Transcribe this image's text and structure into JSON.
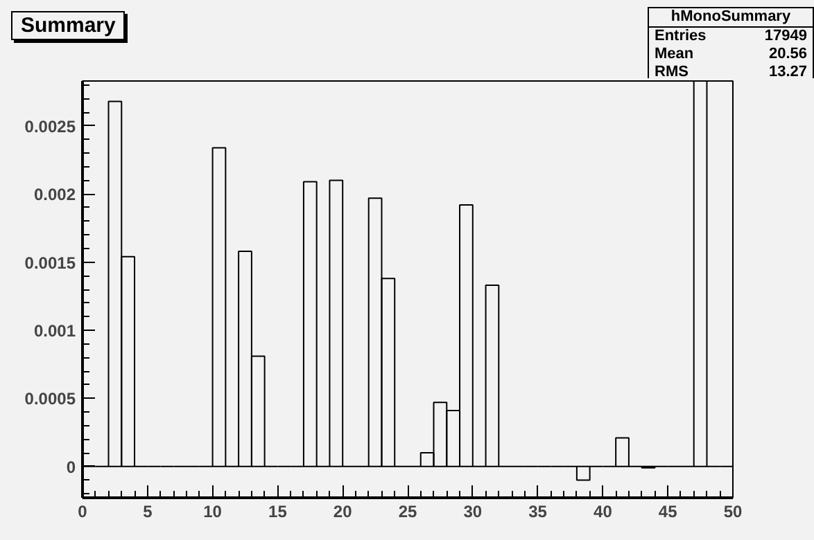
{
  "chart_data": {
    "type": "histogram",
    "title": "Summary",
    "color": "#000000",
    "bins": [
      0,
      1,
      2,
      3,
      4,
      5,
      6,
      7,
      8,
      9,
      10,
      11,
      12,
      13,
      14,
      15,
      16,
      17,
      18,
      19,
      20,
      21,
      22,
      23,
      24,
      25,
      26,
      27,
      28,
      29,
      30,
      31,
      32,
      33,
      34,
      35,
      36,
      37,
      38,
      39,
      40,
      41,
      42,
      43,
      44,
      45,
      46,
      47,
      48,
      49,
      50
    ],
    "values": [
      0,
      0,
      0.00268,
      0.00154,
      0,
      0,
      0,
      0,
      0,
      0,
      0.00234,
      0,
      0.00158,
      0.00081,
      0,
      0,
      0,
      0.00209,
      0,
      0.0021,
      0,
      0,
      0.00197,
      0.00138,
      0,
      0,
      0.0001,
      0.00047,
      0.00041,
      0.00192,
      0,
      0.00133,
      0,
      0,
      0,
      0,
      0,
      0,
      -0.0001,
      0,
      0,
      0.00021,
      0,
      -1e-05,
      0,
      0,
      0,
      0.00283,
      0,
      0
    ],
    "xlim": [
      0,
      50
    ],
    "xticks": [
      0,
      5,
      10,
      15,
      20,
      25,
      30,
      35,
      40,
      45,
      50
    ],
    "ylim": [
      -0.00023,
      0.00283
    ],
    "yticks": [
      0,
      0.0005,
      0.001,
      0.0015,
      0.002,
      0.0025
    ],
    "grid": false,
    "annotations": [
      "hMonoSummary",
      "Entries 17949",
      "Mean 20.56",
      "RMS 13.27"
    ]
  }
}
